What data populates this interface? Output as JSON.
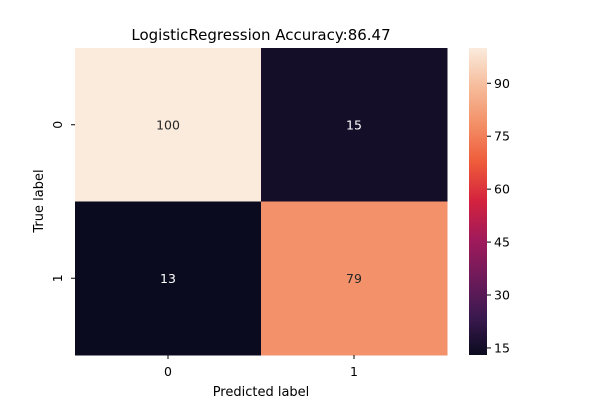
{
  "chart_data": {
    "type": "heatmap",
    "title": "LogisticRegression Accuracy:86.47",
    "xlabel": "Predicted label",
    "ylabel": "True label",
    "x_categories": [
      "0",
      "1"
    ],
    "y_categories": [
      "0",
      "1"
    ],
    "values": [
      [
        100,
        15
      ],
      [
        13,
        79
      ]
    ],
    "colorbar": {
      "min": 13,
      "max": 100,
      "ticks": [
        15,
        30,
        45,
        60,
        75,
        90
      ],
      "colormap": "rocket",
      "colors": [
        "#0b0b1f",
        "#3b1950",
        "#6e1a5a",
        "#a11a5b",
        "#d3223e",
        "#ee5a3a",
        "#f38f66",
        "#f6bc9b",
        "#faebdd"
      ]
    }
  }
}
